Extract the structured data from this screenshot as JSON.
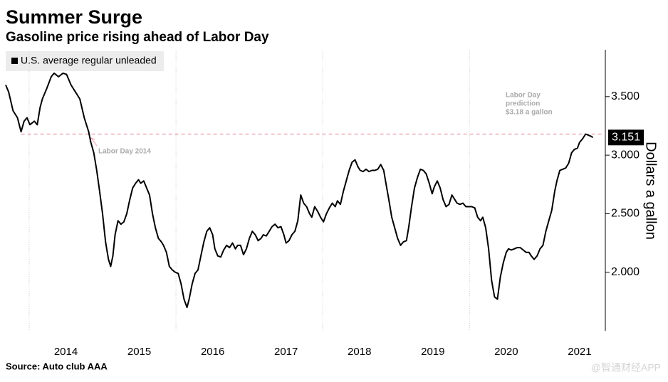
{
  "chart_data": {
    "type": "line",
    "title": "Summer Surge",
    "subtitle": "Gasoline price rising ahead of Labor Day",
    "y_label": "Dollars a gallon",
    "source": "Source: Auto club AAA",
    "watermark": "@智通财经APP",
    "x": [
      2013.68,
      2013.72,
      2013.78,
      2013.84,
      2013.89,
      2013.93,
      2013.97,
      2014.01,
      2014.07,
      2014.11,
      2014.15,
      2014.18,
      2014.24,
      2014.3,
      2014.34,
      2014.4,
      2014.46,
      2014.51,
      2014.57,
      2014.63,
      2014.69,
      2014.75,
      2014.81,
      2014.84,
      2014.88,
      2014.92,
      2014.96,
      2015.0,
      2015.04,
      2015.08,
      2015.11,
      2015.14,
      2015.17,
      2015.21,
      2015.25,
      2015.29,
      2015.33,
      2015.37,
      2015.41,
      2015.45,
      2015.49,
      2015.52,
      2015.56,
      2015.6,
      2015.64,
      2015.68,
      2015.72,
      2015.76,
      2015.8,
      2015.83,
      2015.87,
      2015.91,
      2015.95,
      2015.99,
      2016.03,
      2016.07,
      2016.11,
      2016.15,
      2016.18,
      2016.22,
      2016.26,
      2016.3,
      2016.34,
      2016.38,
      2016.42,
      2016.46,
      2016.5,
      2016.53,
      2016.57,
      2016.61,
      2016.65,
      2016.69,
      2016.73,
      2016.77,
      2016.81,
      2016.84,
      2016.88,
      2016.92,
      2016.96,
      2017.0,
      2017.04,
      2017.08,
      2017.12,
      2017.16,
      2017.19,
      2017.23,
      2017.27,
      2017.31,
      2017.35,
      2017.39,
      2017.43,
      2017.47,
      2017.5,
      2017.54,
      2017.58,
      2017.62,
      2017.66,
      2017.7,
      2017.74,
      2017.78,
      2017.82,
      2017.85,
      2017.89,
      2017.93,
      2017.97,
      2018.01,
      2018.05,
      2018.09,
      2018.13,
      2018.17,
      2018.2,
      2018.24,
      2018.28,
      2018.32,
      2018.36,
      2018.4,
      2018.44,
      2018.48,
      2018.51,
      2018.55,
      2018.59,
      2018.63,
      2018.67,
      2018.71,
      2018.75,
      2018.79,
      2018.83,
      2018.86,
      2018.9,
      2018.94,
      2018.98,
      2019.02,
      2019.06,
      2019.1,
      2019.14,
      2019.17,
      2019.21,
      2019.25,
      2019.29,
      2019.33,
      2019.37,
      2019.41,
      2019.45,
      2019.49,
      2019.52,
      2019.56,
      2019.6,
      2019.64,
      2019.68,
      2019.72,
      2019.76,
      2019.8,
      2019.83,
      2019.87,
      2019.91,
      2019.95,
      2019.99,
      2020.03,
      2020.07,
      2020.11,
      2020.15,
      2020.18,
      2020.22,
      2020.26,
      2020.3,
      2020.34,
      2020.38,
      2020.42,
      2020.46,
      2020.5,
      2020.53,
      2020.57,
      2020.61,
      2020.65,
      2020.69,
      2020.73,
      2020.77,
      2020.81,
      2020.84,
      2020.88,
      2020.92,
      2020.96,
      2021.0,
      2021.04,
      2021.08,
      2021.12,
      2021.16,
      2021.19,
      2021.23,
      2021.27,
      2021.31,
      2021.35,
      2021.39,
      2021.43,
      2021.47,
      2021.5,
      2021.54,
      2021.58,
      2021.62,
      2021.66,
      2021.68
    ],
    "series": [
      {
        "name": "U.S. average regular unleaded",
        "color": "#000000",
        "values": [
          3.6,
          3.54,
          3.38,
          3.32,
          3.2,
          3.29,
          3.32,
          3.26,
          3.29,
          3.26,
          3.41,
          3.48,
          3.57,
          3.67,
          3.7,
          3.67,
          3.7,
          3.69,
          3.6,
          3.54,
          3.48,
          3.32,
          3.2,
          3.11,
          3.02,
          2.87,
          2.69,
          2.5,
          2.26,
          2.11,
          2.05,
          2.14,
          2.32,
          2.44,
          2.41,
          2.43,
          2.5,
          2.62,
          2.72,
          2.76,
          2.79,
          2.76,
          2.78,
          2.72,
          2.66,
          2.5,
          2.38,
          2.29,
          2.26,
          2.23,
          2.17,
          2.05,
          2.02,
          2.0,
          1.99,
          1.9,
          1.77,
          1.7,
          1.77,
          1.9,
          1.99,
          2.02,
          2.14,
          2.26,
          2.35,
          2.38,
          2.32,
          2.2,
          2.14,
          2.13,
          2.19,
          2.23,
          2.21,
          2.25,
          2.2,
          2.23,
          2.23,
          2.15,
          2.2,
          2.29,
          2.35,
          2.32,
          2.27,
          2.29,
          2.32,
          2.31,
          2.35,
          2.39,
          2.41,
          2.38,
          2.39,
          2.32,
          2.25,
          2.27,
          2.32,
          2.35,
          2.44,
          2.66,
          2.59,
          2.56,
          2.5,
          2.47,
          2.56,
          2.52,
          2.47,
          2.43,
          2.5,
          2.55,
          2.59,
          2.56,
          2.61,
          2.58,
          2.69,
          2.78,
          2.87,
          2.94,
          2.96,
          2.9,
          2.87,
          2.86,
          2.88,
          2.86,
          2.87,
          2.87,
          2.88,
          2.92,
          2.87,
          2.76,
          2.62,
          2.47,
          2.38,
          2.29,
          2.23,
          2.26,
          2.27,
          2.38,
          2.56,
          2.72,
          2.81,
          2.88,
          2.87,
          2.84,
          2.76,
          2.67,
          2.73,
          2.78,
          2.72,
          2.62,
          2.56,
          2.58,
          2.66,
          2.62,
          2.59,
          2.58,
          2.59,
          2.56,
          2.56,
          2.56,
          2.55,
          2.47,
          2.44,
          2.47,
          2.38,
          2.2,
          1.93,
          1.79,
          1.77,
          1.96,
          2.08,
          2.17,
          2.2,
          2.19,
          2.2,
          2.21,
          2.21,
          2.19,
          2.17,
          2.17,
          2.14,
          2.11,
          2.14,
          2.2,
          2.23,
          2.35,
          2.44,
          2.53,
          2.69,
          2.78,
          2.87,
          2.88,
          2.89,
          2.93,
          3.02,
          3.05,
          3.06,
          3.11,
          3.14,
          3.18,
          3.17,
          3.16,
          3.151
        ]
      }
    ],
    "xlim": [
      2013.68,
      2021.85
    ],
    "xticks": [
      2014,
      2015,
      2016,
      2017,
      2018,
      2019,
      2020,
      2021
    ],
    "ylim": [
      1.5,
      3.9
    ],
    "yticks": [
      {
        "value": 2,
        "label": "2.000"
      },
      {
        "value": 2.5,
        "label": "2.500"
      },
      {
        "value": 3,
        "label": "3.000"
      },
      {
        "value": 3.5,
        "label": "3.500"
      }
    ],
    "reference_line": {
      "value": 3.18,
      "color": "#e89aa6",
      "label": [
        "Labor Day",
        "prediction",
        "$3.18 a gallon"
      ]
    },
    "annotations": [
      {
        "text": "Labor Day 2014"
      }
    ]
  }
}
